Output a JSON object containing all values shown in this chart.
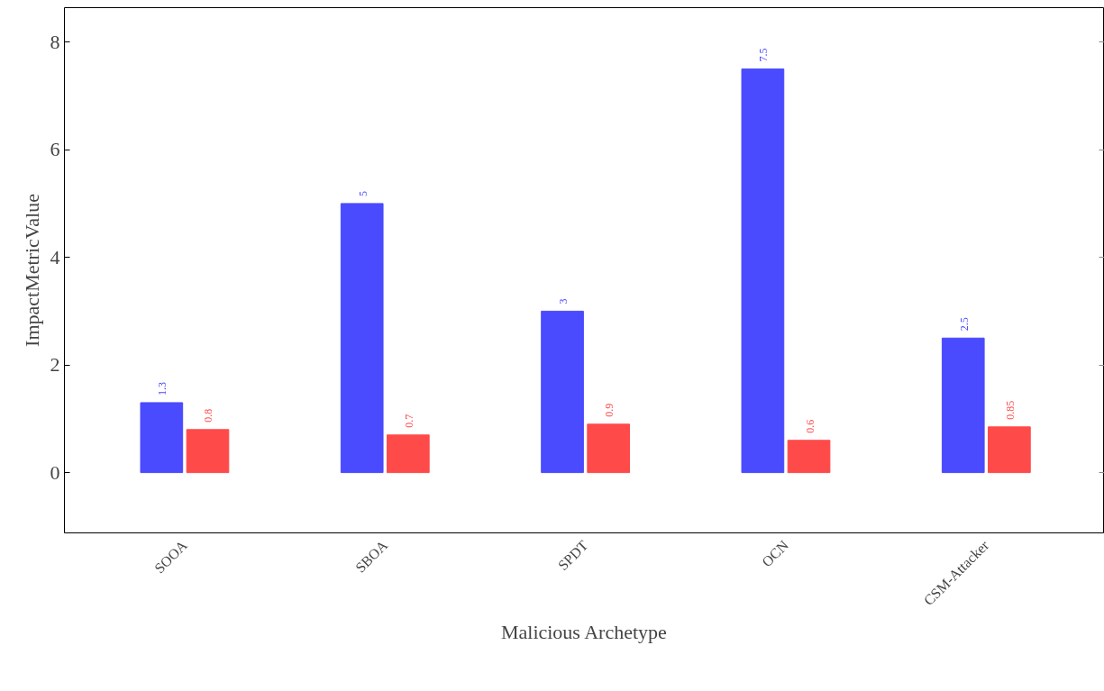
{
  "chart_data": {
    "type": "bar",
    "xlabel": "Malicious Archetype",
    "ylabel": "ImpactMetricValue",
    "categories": [
      "SOOA",
      "SBOA",
      "SPDT",
      "OCN",
      "CSM-Attacker"
    ],
    "series": [
      {
        "color": "#4a4aff",
        "values": [
          1.3,
          5,
          3,
          7.5,
          2.5
        ]
      },
      {
        "color": "#ff4a4a",
        "values": [
          0.8,
          0.7,
          0.9,
          0.6,
          0.85
        ]
      }
    ],
    "ylim": [
      -1.12,
      8.64
    ],
    "yticks": [
      0,
      2,
      4,
      6,
      8
    ],
    "grid": false,
    "data_labels": true
  }
}
